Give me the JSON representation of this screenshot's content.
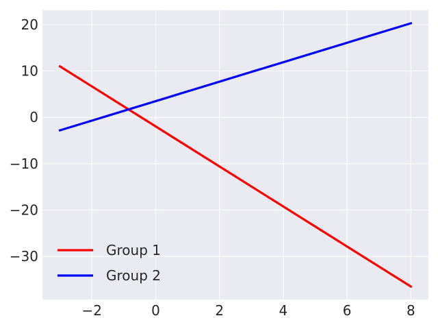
{
  "chart_data": {
    "type": "line",
    "title": "",
    "xlabel": "",
    "ylabel": "",
    "xlim": [
      -3.55,
      8.55
    ],
    "ylim": [
      -39.3,
      23.1
    ],
    "x_ticks": [
      -2,
      0,
      2,
      4,
      6,
      8
    ],
    "y_ticks": [
      -30,
      -20,
      -10,
      0,
      10,
      20
    ],
    "x_tick_labels": [
      "−2",
      "0",
      "2",
      "4",
      "6",
      "8"
    ],
    "y_tick_labels": [
      "−30",
      "−20",
      "−10",
      "0",
      "10",
      "20"
    ],
    "grid": true,
    "legend_position": "lower-left",
    "background_color": "#eaeaf2",
    "grid_color": "#ffffff",
    "series": [
      {
        "name": "Group 1",
        "color": "#ff0000",
        "x": [
          -3,
          8
        ],
        "y": [
          11,
          -36.5
        ]
      },
      {
        "name": "Group 2",
        "color": "#0000ff",
        "x": [
          -3,
          8
        ],
        "y": [
          -2.8,
          20.3
        ]
      }
    ]
  }
}
